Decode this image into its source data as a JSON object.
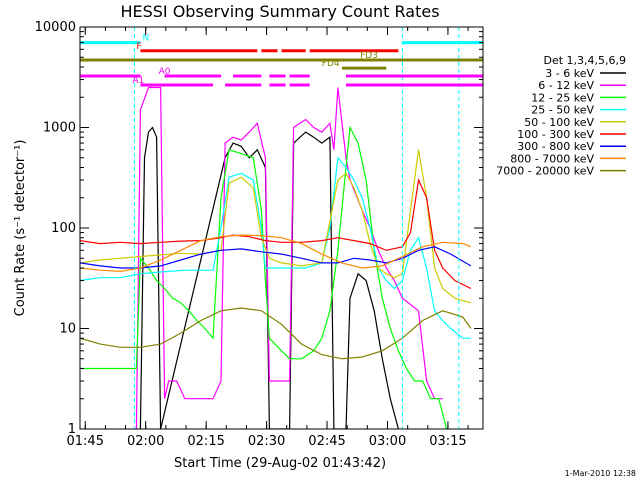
{
  "chart_data": {
    "type": "line",
    "title": "HESSI Observing Summary Count Rates",
    "xlabel": "Start Time (29-Aug-02 01:43:42)",
    "ylabel": "Count Rate (s⁻¹ detector⁻¹)",
    "y_scale": "log",
    "ylim": [
      1,
      10000
    ],
    "xlim_minutes": [
      0,
      100
    ],
    "x_ticks": [
      {
        "label": "01:45",
        "min": 1.3
      },
      {
        "label": "02:00",
        "min": 16.3
      },
      {
        "label": "02:15",
        "min": 31.3
      },
      {
        "label": "02:30",
        "min": 46.3
      },
      {
        "label": "02:45",
        "min": 61.3
      },
      {
        "label": "03:00",
        "min": 76.3
      },
      {
        "label": "03:15",
        "min": 91.3
      }
    ],
    "y_ticks": [
      {
        "label": "1",
        "value": 1
      },
      {
        "label": "10",
        "value": 10
      },
      {
        "label": "100",
        "value": 100
      },
      {
        "label": "1000",
        "value": 1000
      },
      {
        "label": "10000",
        "value": 10000
      }
    ],
    "legend_title": "Det 1,3,4,5,6,9",
    "legend_position": "right",
    "series": [
      {
        "name": "3 - 6 keV",
        "color": "#000000",
        "points": [
          [
            15,
            1
          ],
          [
            16,
            500
          ],
          [
            17,
            900
          ],
          [
            18,
            1000
          ],
          [
            19,
            800
          ],
          [
            20,
            1
          ],
          [
            36,
            500
          ],
          [
            38,
            700
          ],
          [
            40,
            650
          ],
          [
            42,
            500
          ],
          [
            44,
            600
          ],
          [
            46,
            400
          ],
          [
            47,
            1
          ],
          [
            52,
            1
          ],
          [
            53,
            700
          ],
          [
            56,
            900
          ],
          [
            58,
            800
          ],
          [
            60,
            700
          ],
          [
            62,
            800
          ],
          [
            63,
            1
          ],
          [
            66,
            1
          ],
          [
            67,
            20
          ],
          [
            69,
            35
          ],
          [
            71,
            30
          ],
          [
            73,
            15
          ],
          [
            75,
            5
          ],
          [
            77,
            2
          ],
          [
            79,
            1
          ]
        ]
      },
      {
        "name": "6 - 12 keV",
        "color": "#ff00ff",
        "points": [
          [
            14,
            1
          ],
          [
            15,
            1500
          ],
          [
            17,
            2500
          ],
          [
            19,
            2500
          ],
          [
            20,
            2500
          ],
          [
            21,
            2
          ],
          [
            22,
            3
          ],
          [
            24,
            3
          ],
          [
            26,
            2
          ],
          [
            28,
            2
          ],
          [
            30,
            2
          ],
          [
            33,
            2
          ],
          [
            35,
            3
          ],
          [
            36,
            700
          ],
          [
            38,
            800
          ],
          [
            40,
            750
          ],
          [
            42,
            900
          ],
          [
            44,
            1100
          ],
          [
            46,
            500
          ],
          [
            47,
            3
          ],
          [
            52,
            3
          ],
          [
            53,
            1000
          ],
          [
            56,
            1200
          ],
          [
            58,
            1000
          ],
          [
            60,
            900
          ],
          [
            62,
            1100
          ],
          [
            63,
            600
          ],
          [
            64,
            2500
          ],
          [
            66,
            500
          ],
          [
            67,
            300
          ],
          [
            70,
            150
          ],
          [
            72,
            100
          ],
          [
            74,
            60
          ],
          [
            76,
            40
          ],
          [
            78,
            30
          ],
          [
            80,
            20
          ],
          [
            84,
            15
          ],
          [
            86,
            3
          ],
          [
            88,
            2
          ],
          [
            90,
            2
          ]
        ]
      },
      {
        "name": "12 - 25 keV",
        "color": "#00ff00",
        "points": [
          [
            0,
            4
          ],
          [
            5,
            4
          ],
          [
            10,
            4
          ],
          [
            14,
            4
          ],
          [
            15,
            50
          ],
          [
            17,
            40
          ],
          [
            19,
            30
          ],
          [
            21,
            25
          ],
          [
            23,
            20
          ],
          [
            25,
            18
          ],
          [
            27,
            15
          ],
          [
            29,
            12
          ],
          [
            31,
            10
          ],
          [
            33,
            8
          ],
          [
            35,
            200
          ],
          [
            37,
            600
          ],
          [
            40,
            550
          ],
          [
            43,
            500
          ],
          [
            45,
            150
          ],
          [
            46,
            30
          ],
          [
            47,
            8
          ],
          [
            50,
            6
          ],
          [
            52,
            5
          ],
          [
            55,
            5
          ],
          [
            58,
            6
          ],
          [
            60,
            8
          ],
          [
            62,
            15
          ],
          [
            64,
            60
          ],
          [
            66,
            400
          ],
          [
            67,
            1000
          ],
          [
            69,
            700
          ],
          [
            71,
            300
          ],
          [
            73,
            60
          ],
          [
            75,
            20
          ],
          [
            77,
            10
          ],
          [
            79,
            6
          ],
          [
            81,
            4
          ],
          [
            83,
            3
          ],
          [
            85,
            3
          ],
          [
            87,
            2
          ],
          [
            89,
            2
          ],
          [
            91,
            1
          ]
        ]
      },
      {
        "name": "25 - 50 keV",
        "color": "#00ffff",
        "points": [
          [
            0,
            30
          ],
          [
            5,
            32
          ],
          [
            10,
            32
          ],
          [
            15,
            35
          ],
          [
            18,
            36
          ],
          [
            22,
            37
          ],
          [
            26,
            38
          ],
          [
            30,
            38
          ],
          [
            33,
            38
          ],
          [
            35,
            100
          ],
          [
            37,
            320
          ],
          [
            40,
            350
          ],
          [
            43,
            300
          ],
          [
            45,
            100
          ],
          [
            46,
            40
          ],
          [
            48,
            40
          ],
          [
            52,
            40
          ],
          [
            56,
            40
          ],
          [
            60,
            45
          ],
          [
            62,
            100
          ],
          [
            64,
            500
          ],
          [
            66,
            400
          ],
          [
            68,
            300
          ],
          [
            70,
            200
          ],
          [
            72,
            100
          ],
          [
            74,
            40
          ],
          [
            76,
            30
          ],
          [
            78,
            25
          ],
          [
            80,
            30
          ],
          [
            82,
            60
          ],
          [
            84,
            80
          ],
          [
            86,
            40
          ],
          [
            88,
            15
          ],
          [
            90,
            12
          ],
          [
            92,
            10
          ],
          [
            95,
            8
          ],
          [
            97,
            8
          ]
        ]
      },
      {
        "name": "50 - 100 keV",
        "color": "#cccc00",
        "points": [
          [
            0,
            45
          ],
          [
            5,
            48
          ],
          [
            10,
            50
          ],
          [
            15,
            52
          ],
          [
            20,
            54
          ],
          [
            25,
            56
          ],
          [
            30,
            55
          ],
          [
            35,
            60
          ],
          [
            37,
            280
          ],
          [
            40,
            320
          ],
          [
            43,
            250
          ],
          [
            45,
            80
          ],
          [
            47,
            50
          ],
          [
            50,
            45
          ],
          [
            55,
            42
          ],
          [
            60,
            45
          ],
          [
            64,
            300
          ],
          [
            66,
            350
          ],
          [
            68,
            250
          ],
          [
            70,
            150
          ],
          [
            72,
            70
          ],
          [
            74,
            40
          ],
          [
            76,
            35
          ],
          [
            78,
            32
          ],
          [
            80,
            35
          ],
          [
            82,
            150
          ],
          [
            84,
            600
          ],
          [
            86,
            200
          ],
          [
            88,
            40
          ],
          [
            90,
            25
          ],
          [
            93,
            20
          ],
          [
            97,
            18
          ]
        ]
      },
      {
        "name": "100 - 300 keV",
        "color": "#ff0000",
        "points": [
          [
            0,
            75
          ],
          [
            5,
            70
          ],
          [
            10,
            72
          ],
          [
            15,
            70
          ],
          [
            20,
            72
          ],
          [
            25,
            74
          ],
          [
            30,
            75
          ],
          [
            35,
            80
          ],
          [
            38,
            85
          ],
          [
            42,
            82
          ],
          [
            46,
            75
          ],
          [
            50,
            72
          ],
          [
            55,
            72
          ],
          [
            60,
            75
          ],
          [
            64,
            80
          ],
          [
            68,
            75
          ],
          [
            72,
            70
          ],
          [
            76,
            60
          ],
          [
            80,
            65
          ],
          [
            82,
            90
          ],
          [
            84,
            300
          ],
          [
            86,
            200
          ],
          [
            88,
            60
          ],
          [
            90,
            40
          ],
          [
            93,
            30
          ],
          [
            97,
            25
          ]
        ]
      },
      {
        "name": "300 - 800 keV",
        "color": "#0000ff",
        "points": [
          [
            0,
            45
          ],
          [
            5,
            42
          ],
          [
            10,
            40
          ],
          [
            15,
            40
          ],
          [
            20,
            42
          ],
          [
            25,
            48
          ],
          [
            30,
            55
          ],
          [
            35,
            60
          ],
          [
            40,
            62
          ],
          [
            45,
            58
          ],
          [
            50,
            55
          ],
          [
            55,
            50
          ],
          [
            60,
            45
          ],
          [
            64,
            45
          ],
          [
            68,
            50
          ],
          [
            72,
            48
          ],
          [
            76,
            45
          ],
          [
            80,
            50
          ],
          [
            84,
            60
          ],
          [
            88,
            65
          ],
          [
            92,
            55
          ],
          [
            97,
            42
          ]
        ]
      },
      {
        "name": "800 - 7000 keV",
        "color": "#ff8800",
        "points": [
          [
            0,
            40
          ],
          [
            5,
            38
          ],
          [
            10,
            37
          ],
          [
            15,
            40
          ],
          [
            20,
            48
          ],
          [
            25,
            60
          ],
          [
            30,
            75
          ],
          [
            35,
            82
          ],
          [
            40,
            85
          ],
          [
            45,
            84
          ],
          [
            50,
            80
          ],
          [
            55,
            70
          ],
          [
            60,
            55
          ],
          [
            65,
            45
          ],
          [
            70,
            40
          ],
          [
            75,
            42
          ],
          [
            80,
            52
          ],
          [
            85,
            65
          ],
          [
            90,
            72
          ],
          [
            95,
            70
          ],
          [
            97,
            65
          ]
        ]
      },
      {
        "name": "7000 - 20000 keV",
        "color": "#808000",
        "points": [
          [
            0,
            8
          ],
          [
            5,
            7
          ],
          [
            10,
            6.5
          ],
          [
            15,
            6.5
          ],
          [
            20,
            7
          ],
          [
            25,
            9
          ],
          [
            30,
            12
          ],
          [
            35,
            15
          ],
          [
            40,
            16
          ],
          [
            45,
            15
          ],
          [
            50,
            11
          ],
          [
            55,
            7
          ],
          [
            60,
            5.5
          ],
          [
            65,
            5
          ],
          [
            70,
            5.2
          ],
          [
            75,
            6
          ],
          [
            80,
            8
          ],
          [
            85,
            12
          ],
          [
            90,
            15
          ],
          [
            95,
            13
          ],
          [
            97,
            10
          ]
        ]
      }
    ],
    "segment_bars": [
      {
        "label": "N",
        "color": "#00ffff",
        "level_value": 7000,
        "label_min": 15.5,
        "spans": [
          [
            0,
            15
          ],
          [
            80,
            100
          ]
        ]
      },
      {
        "label": "F",
        "color": "#ff0000",
        "level_value": 5800,
        "label_min": 14,
        "spans": [
          [
            15,
            44
          ],
          [
            45,
            49
          ],
          [
            50,
            56
          ],
          [
            57,
            79
          ]
        ]
      },
      {
        "label": "FD3",
        "color": "#808000",
        "level_value": 4700,
        "label_min": 69.5,
        "spans": [
          [
            0,
            100
          ]
        ]
      },
      {
        "label": "FD4",
        "color": "#808000",
        "level_value": 3900,
        "label_min": 60,
        "spans": [
          [
            65,
            76
          ]
        ]
      },
      {
        "label": "A0",
        "color": "#ff00ff",
        "level_value": 3250,
        "label_min": 19.5,
        "spans": [
          [
            0,
            15
          ],
          [
            21,
            35
          ],
          [
            38,
            45
          ],
          [
            47,
            51
          ],
          [
            52,
            57
          ],
          [
            66,
            100
          ]
        ]
      },
      {
        "label": "A1",
        "color": "#ff00ff",
        "level_value": 2650,
        "label_min": 13,
        "spans": [
          [
            15,
            33
          ],
          [
            36,
            45
          ],
          [
            47,
            51
          ],
          [
            52,
            57
          ],
          [
            66,
            100
          ]
        ]
      }
    ],
    "saa_dashed_minutes": [
      13.5,
      80,
      94
    ]
  },
  "footer": {
    "date_stamp": "1-Mar-2010 12:38"
  }
}
